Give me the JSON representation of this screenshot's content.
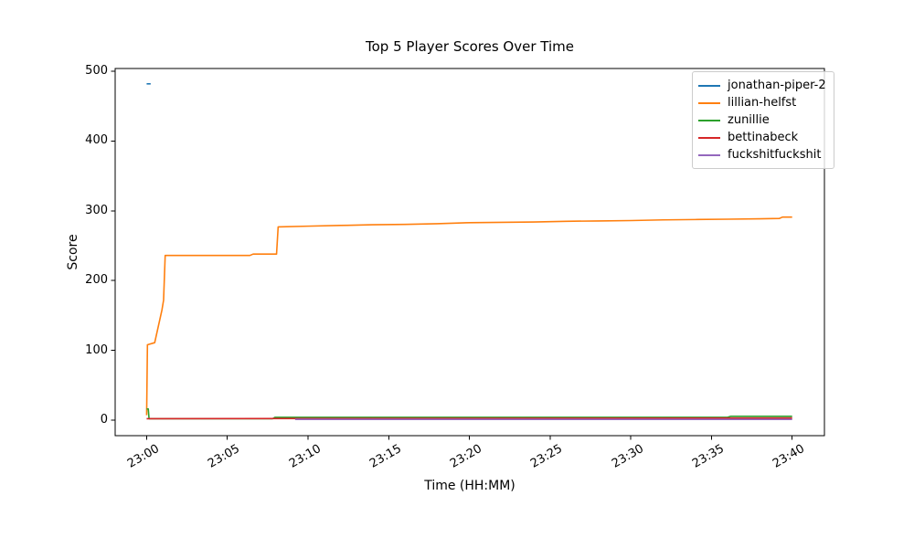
{
  "figure": {
    "background": "#ffffff",
    "spine_color": "#000000"
  },
  "chart_data": {
    "type": "line",
    "title": "Top 5 Player Scores Over Time",
    "xlabel": "Time (HH:MM)",
    "ylabel": "Score",
    "grid": false,
    "legend_position": "upper-right",
    "x_axis": {
      "unit": "minutes after 23:00",
      "lim": [
        -1.95,
        42.0
      ],
      "tick_positions": [
        0,
        5,
        10,
        15,
        20,
        25,
        30,
        35,
        40
      ],
      "tick_labels": [
        "23:00",
        "23:05",
        "23:10",
        "23:15",
        "23:20",
        "23:25",
        "23:30",
        "23:35",
        "23:40"
      ],
      "tick_rotation_deg": 30
    },
    "y_axis": {
      "lim": [
        -22.3,
        504
      ],
      "tick_positions": [
        0,
        100,
        200,
        300,
        400,
        500
      ],
      "tick_labels": [
        "0",
        "100",
        "200",
        "300",
        "400",
        "500"
      ]
    },
    "series": [
      {
        "name": "jonathan-piper-2",
        "color": "#1f77b4",
        "points": [
          [
            0,
            482
          ],
          [
            0.25,
            482
          ]
        ]
      },
      {
        "name": "lillian-helfst",
        "color": "#ff7f0e",
        "points": [
          [
            0,
            7
          ],
          [
            0.05,
            108
          ],
          [
            0.5,
            111
          ],
          [
            0.95,
            158
          ],
          [
            1.05,
            172
          ],
          [
            1.15,
            236
          ],
          [
            6.4,
            236
          ],
          [
            6.6,
            238
          ],
          [
            8.05,
            238
          ],
          [
            8.15,
            277
          ],
          [
            10,
            278
          ],
          [
            12,
            279
          ],
          [
            14,
            280
          ],
          [
            16,
            280.5
          ],
          [
            18,
            281.5
          ],
          [
            20,
            283
          ],
          [
            22,
            283.5
          ],
          [
            24,
            284
          ],
          [
            26,
            285
          ],
          [
            28,
            285.5
          ],
          [
            30,
            286
          ],
          [
            32,
            287
          ],
          [
            34,
            287.5
          ],
          [
            36,
            288
          ],
          [
            38,
            288.5
          ],
          [
            39.2,
            289
          ],
          [
            39.4,
            291
          ],
          [
            40,
            291
          ]
        ]
      },
      {
        "name": "zunillie",
        "color": "#2ca02c",
        "points": [
          [
            0,
            16
          ],
          [
            0.1,
            16
          ],
          [
            0.15,
            2
          ],
          [
            7.8,
            2
          ],
          [
            7.95,
            4
          ],
          [
            36,
            4
          ],
          [
            36.2,
            5.5
          ],
          [
            40,
            5.5
          ]
        ]
      },
      {
        "name": "bettinabeck",
        "color": "#d62728",
        "points": [
          [
            0,
            2
          ],
          [
            20,
            2.5
          ],
          [
            40,
            3
          ]
        ]
      },
      {
        "name": "fuckshitfuckshit",
        "color": "#9467bd",
        "points": [
          [
            9.2,
            1
          ],
          [
            40,
            1
          ]
        ]
      }
    ]
  }
}
